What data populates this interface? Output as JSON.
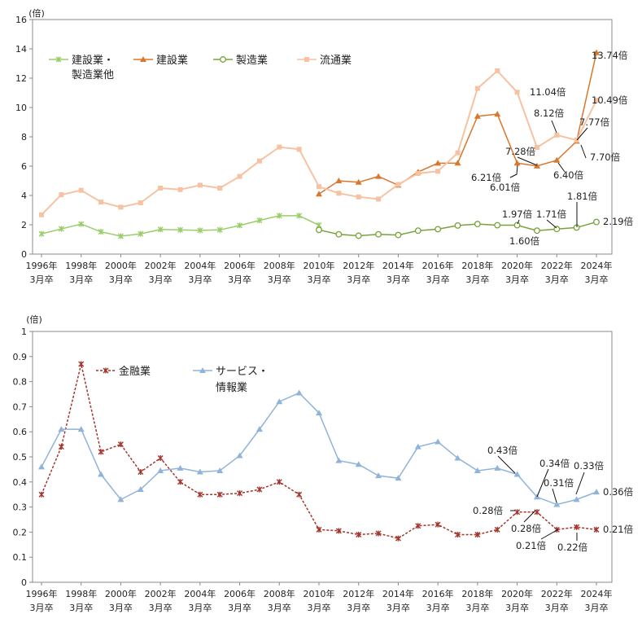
{
  "chart_data": [
    {
      "type": "line",
      "unit_label": "(倍)",
      "ylim": [
        0,
        16
      ],
      "yticks": [
        0,
        2,
        4,
        6,
        8,
        10,
        12,
        14,
        16
      ],
      "x": [
        1996,
        1997,
        1998,
        1999,
        2000,
        2001,
        2002,
        2003,
        2004,
        2005,
        2006,
        2007,
        2008,
        2009,
        2010,
        2011,
        2012,
        2013,
        2014,
        2015,
        2016,
        2017,
        2018,
        2019,
        2020,
        2021,
        2022,
        2023,
        2024
      ],
      "xtick_labels": [
        {
          "year": 1996,
          "line1": "1996年",
          "line2": "3月卒"
        },
        {
          "year": 1998,
          "line1": "1998年",
          "line2": "3月卒"
        },
        {
          "year": 2000,
          "line1": "2000年",
          "line2": "3月卒"
        },
        {
          "year": 2002,
          "line1": "2002年",
          "line2": "3月卒"
        },
        {
          "year": 2004,
          "line1": "2004年",
          "line2": "3月卒"
        },
        {
          "year": 2006,
          "line1": "2006年",
          "line2": "3月卒"
        },
        {
          "year": 2008,
          "line1": "2008年",
          "line2": "3月卒"
        },
        {
          "year": 2010,
          "line1": "2010年",
          "line2": "3月卒"
        },
        {
          "year": 2012,
          "line1": "2012年",
          "line2": "3月卒"
        },
        {
          "year": 2014,
          "line1": "2014年",
          "line2": "3月卒"
        },
        {
          "year": 2016,
          "line1": "2016年",
          "line2": "3月卒"
        },
        {
          "year": 2018,
          "line1": "2018年",
          "line2": "3月卒"
        },
        {
          "year": 2020,
          "line1": "2020年",
          "line2": "3月卒"
        },
        {
          "year": 2022,
          "line1": "2022年",
          "line2": "3月卒"
        },
        {
          "year": 2024,
          "line1": "2024年",
          "line2": "3月卒"
        }
      ],
      "series": [
        {
          "name": "建設業・製造業他",
          "legend_lines": [
            "建設業・",
            "製造業他"
          ],
          "color": "#9acd6a",
          "marker": "x",
          "x": [
            1996,
            1997,
            1998,
            1999,
            2000,
            2001,
            2002,
            2003,
            2004,
            2005,
            2006,
            2007,
            2008,
            2009,
            2010
          ],
          "values": [
            1.38,
            1.72,
            2.05,
            1.52,
            1.22,
            1.38,
            1.68,
            1.65,
            1.62,
            1.65,
            1.95,
            2.3,
            2.62,
            2.62,
            1.97
          ]
        },
        {
          "name": "建設業",
          "legend_lines": [
            "建設業"
          ],
          "color": "#d9772c",
          "marker": "triangle",
          "x": [
            2010,
            2011,
            2012,
            2013,
            2014,
            2015,
            2016,
            2017,
            2018,
            2019,
            2020,
            2021,
            2022,
            2023,
            2024
          ],
          "values": [
            4.1,
            5.0,
            4.9,
            5.3,
            4.7,
            5.6,
            6.2,
            6.21,
            9.4,
            9.55,
            6.21,
            6.01,
            6.4,
            7.7,
            13.74
          ]
        },
        {
          "name": "製造業",
          "legend_lines": [
            "製造業"
          ],
          "color": "#77a33a",
          "marker": "circle",
          "x": [
            2010,
            2011,
            2012,
            2013,
            2014,
            2015,
            2016,
            2017,
            2018,
            2019,
            2020,
            2021,
            2022,
            2023,
            2024
          ],
          "values": [
            1.65,
            1.35,
            1.25,
            1.35,
            1.3,
            1.6,
            1.7,
            1.95,
            2.05,
            1.97,
            1.97,
            1.6,
            1.71,
            1.81,
            2.19
          ]
        },
        {
          "name": "流通業",
          "legend_lines": [
            "流通業"
          ],
          "color": "#f6c2a2",
          "marker": "square",
          "x": [
            1996,
            1997,
            1998,
            1999,
            2000,
            2001,
            2002,
            2003,
            2004,
            2005,
            2006,
            2007,
            2008,
            2009,
            2010,
            2011,
            2012,
            2013,
            2014,
            2015,
            2016,
            2017,
            2018,
            2019,
            2020,
            2021,
            2022,
            2023,
            2024
          ],
          "values": [
            2.68,
            4.05,
            4.35,
            3.55,
            3.2,
            3.5,
            4.5,
            4.4,
            4.7,
            4.5,
            5.3,
            6.35,
            7.3,
            7.15,
            4.6,
            4.15,
            3.9,
            3.75,
            4.75,
            5.5,
            5.65,
            6.9,
            11.3,
            12.5,
            11.04,
            7.28,
            8.12,
            7.77,
            10.49
          ]
        }
      ],
      "annotations": [
        {
          "text": "13.74倍"
        },
        {
          "text": "11.04倍"
        },
        {
          "text": "10.49倍"
        },
        {
          "text": "8.12倍"
        },
        {
          "text": "7.77倍"
        },
        {
          "text": "7.28倍"
        },
        {
          "text": "7.70倍"
        },
        {
          "text": "6.21倍"
        },
        {
          "text": "6.40倍"
        },
        {
          "text": "6.01倍"
        },
        {
          "text": "1.81倍"
        },
        {
          "text": "1.97倍"
        },
        {
          "text": "1.71倍"
        },
        {
          "text": "2.19倍"
        },
        {
          "text": "1.60倍"
        }
      ]
    },
    {
      "type": "line",
      "unit_label": "(倍)",
      "ylim": [
        0,
        1.0
      ],
      "yticks": [
        "0",
        "0.1",
        "0.2",
        "0.3",
        "0.4",
        "0.5",
        "0.6",
        "0.7",
        "0.8",
        "0.9",
        "1"
      ],
      "x": [
        1996,
        1997,
        1998,
        1999,
        2000,
        2001,
        2002,
        2003,
        2004,
        2005,
        2006,
        2007,
        2008,
        2009,
        2010,
        2011,
        2012,
        2013,
        2014,
        2015,
        2016,
        2017,
        2018,
        2019,
        2020,
        2021,
        2022,
        2023,
        2024
      ],
      "xtick_labels": [
        {
          "year": 1996,
          "line1": "1996年",
          "line2": "3月卒"
        },
        {
          "year": 1998,
          "line1": "1998年",
          "line2": "3月卒"
        },
        {
          "year": 2000,
          "line1": "2000年",
          "line2": "3月卒"
        },
        {
          "year": 2002,
          "line1": "2002年",
          "line2": "3月卒"
        },
        {
          "year": 2004,
          "line1": "2004年",
          "line2": "3月卒"
        },
        {
          "year": 2006,
          "line1": "2006年",
          "line2": "3月卒"
        },
        {
          "year": 2008,
          "line1": "2008年",
          "line2": "3月卒"
        },
        {
          "year": 2010,
          "line1": "2010年",
          "line2": "3月卒"
        },
        {
          "year": 2012,
          "line1": "2012年",
          "line2": "3月卒"
        },
        {
          "year": 2014,
          "line1": "2014年",
          "line2": "3月卒"
        },
        {
          "year": 2016,
          "line1": "2016年",
          "line2": "3月卒"
        },
        {
          "year": 2018,
          "line1": "2018年",
          "line2": "3月卒"
        },
        {
          "year": 2020,
          "line1": "2020年",
          "line2": "3月卒"
        },
        {
          "year": 2022,
          "line1": "2022年",
          "line2": "3月卒"
        },
        {
          "year": 2024,
          "line1": "2024年",
          "line2": "3月卒"
        }
      ],
      "series": [
        {
          "name": "金融業",
          "legend_lines": [
            "金融業"
          ],
          "color": "#a3352c",
          "marker": "x",
          "dashed": true,
          "values": [
            0.35,
            0.54,
            0.87,
            0.52,
            0.55,
            0.44,
            0.495,
            0.4,
            0.35,
            0.35,
            0.355,
            0.37,
            0.4,
            0.35,
            0.21,
            0.205,
            0.19,
            0.195,
            0.175,
            0.225,
            0.23,
            0.19,
            0.19,
            0.21,
            0.28,
            0.28,
            0.21,
            0.22,
            0.21
          ]
        },
        {
          "name": "サービス・情報業",
          "legend_lines": [
            "サービス・",
            "情報業"
          ],
          "color": "#8fb3d9",
          "marker": "triangle",
          "values": [
            0.46,
            0.61,
            0.61,
            0.43,
            0.33,
            0.37,
            0.445,
            0.455,
            0.44,
            0.445,
            0.505,
            0.61,
            0.72,
            0.755,
            0.675,
            0.485,
            0.47,
            0.425,
            0.415,
            0.54,
            0.56,
            0.495,
            0.445,
            0.455,
            0.43,
            0.34,
            0.31,
            0.33,
            0.36
          ]
        }
      ],
      "annotations": [
        {
          "text": "0.43倍"
        },
        {
          "text": "0.34倍"
        },
        {
          "text": "0.33倍"
        },
        {
          "text": "0.31倍"
        },
        {
          "text": "0.36倍"
        },
        {
          "text": "0.28倍"
        },
        {
          "text": "0.28倍"
        },
        {
          "text": "0.21倍"
        },
        {
          "text": "0.22倍"
        },
        {
          "text": "0.21倍"
        }
      ]
    }
  ]
}
